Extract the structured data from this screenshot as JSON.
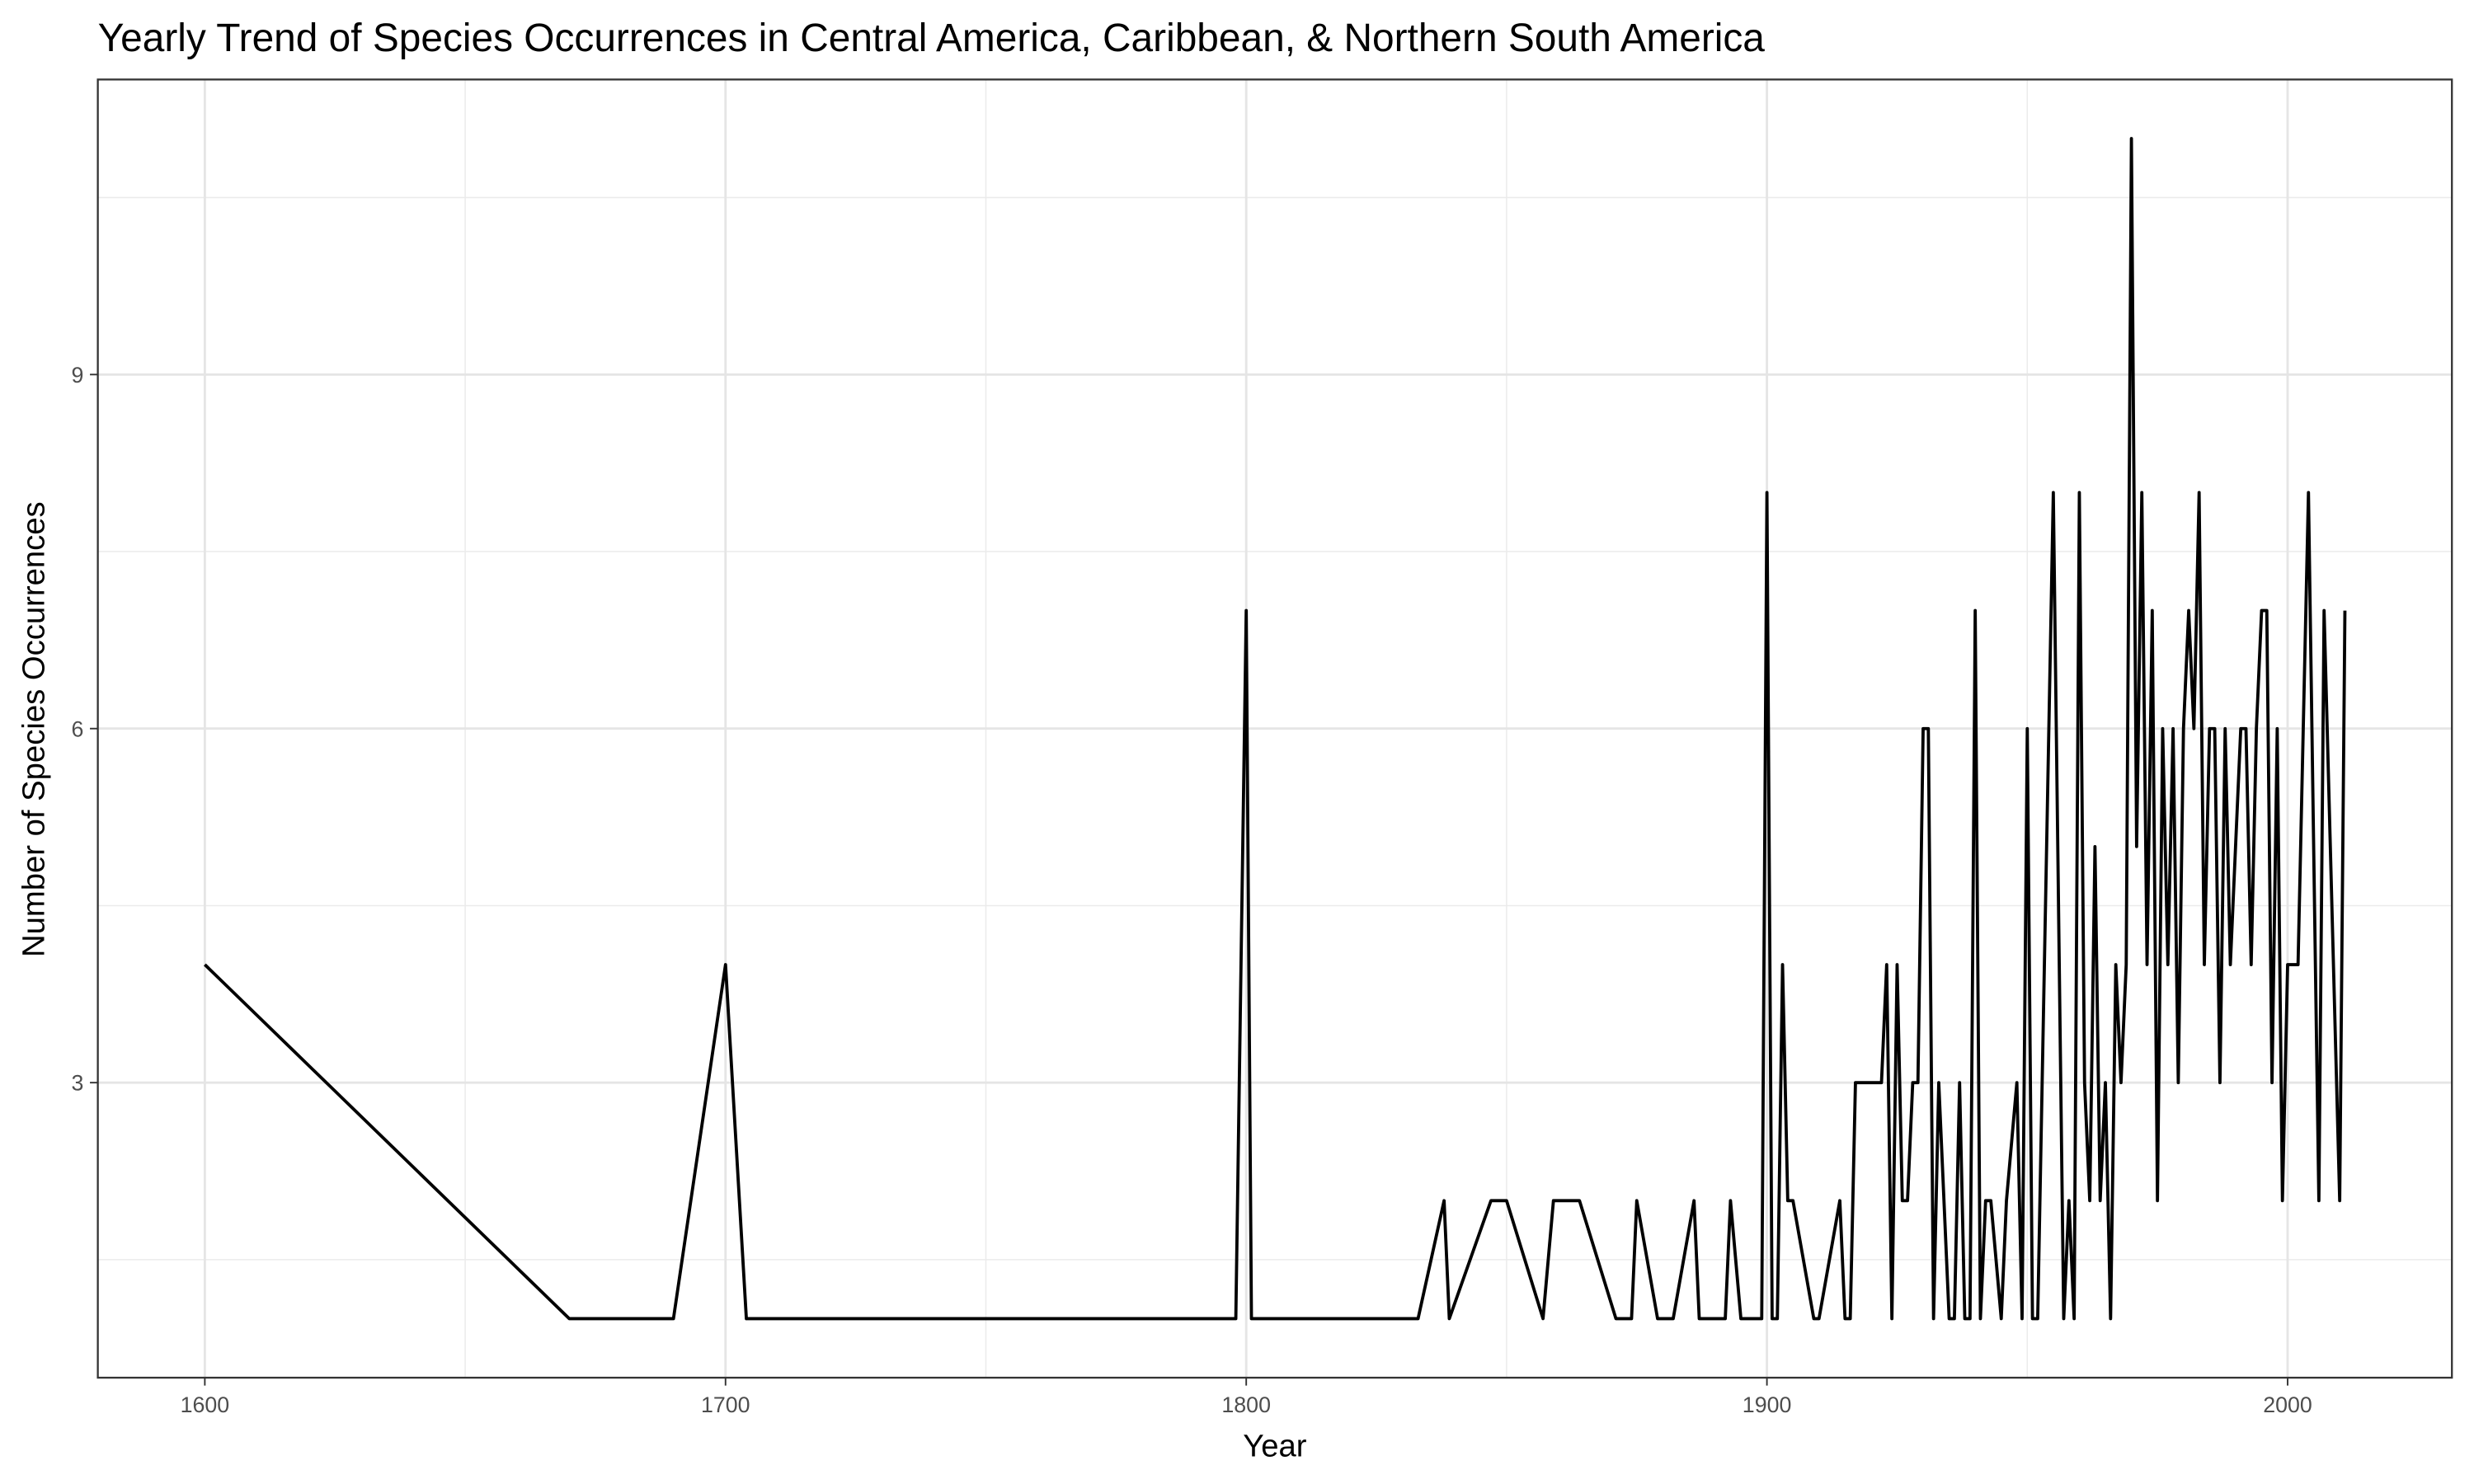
{
  "chart_data": {
    "type": "line",
    "title": "Yearly Trend of Species Occurrences in Central America, Caribbean, & Northern South America",
    "x_label": "Year",
    "y_label": "Number of Species Occurrences",
    "x": [
      1600,
      1670,
      1690,
      1700,
      1704,
      1798,
      1800,
      1801,
      1833,
      1838,
      1839,
      1847,
      1850,
      1857,
      1859,
      1864,
      1871,
      1874,
      1875,
      1879,
      1882,
      1886,
      1887,
      1892,
      1893,
      1895,
      1899,
      1900,
      1901,
      1902,
      1903,
      1904,
      1905,
      1909,
      1910,
      1914,
      1915,
      1916,
      1917,
      1922,
      1923,
      1924,
      1925,
      1926,
      1927,
      1928,
      1929,
      1930,
      1931,
      1932,
      1933,
      1935,
      1936,
      1937,
      1938,
      1939,
      1940,
      1941,
      1942,
      1943,
      1945,
      1946,
      1948,
      1949,
      1950,
      1951,
      1952,
      1955,
      1957,
      1958,
      1959,
      1960,
      1961,
      1962,
      1963,
      1964,
      1965,
      1966,
      1967,
      1968,
      1969,
      1970,
      1971,
      1972,
      1973,
      1974,
      1975,
      1976,
      1977,
      1978,
      1979,
      1980,
      1981,
      1982,
      1983,
      1984,
      1985,
      1986,
      1987,
      1988,
      1989,
      1991,
      1992,
      1993,
      1994,
      1995,
      1996,
      1997,
      1998,
      1999,
      2000,
      2001,
      2002,
      2004,
      2006,
      2007,
      2010,
      2011
    ],
    "series": [
      {
        "color": "#000000",
        "values": [
          4,
          1,
          1,
          4,
          1,
          1,
          7,
          1,
          1,
          2,
          1,
          2,
          2,
          1,
          2,
          2,
          1,
          1,
          2,
          1,
          1,
          2,
          1,
          1,
          2,
          1,
          1,
          8,
          1,
          1,
          4,
          2,
          2,
          1,
          1,
          2,
          1,
          1,
          3,
          3,
          4,
          1,
          4,
          2,
          2,
          3,
          3,
          6,
          6,
          1,
          3,
          1,
          1,
          3,
          1,
          1,
          7,
          1,
          2,
          2,
          1,
          2,
          3,
          1,
          6,
          1,
          1,
          8,
          1,
          2,
          1,
          8,
          3,
          2,
          5,
          2,
          3,
          1,
          4,
          3,
          4,
          11,
          5,
          8,
          4,
          7,
          2,
          6,
          4,
          6,
          3,
          6,
          7,
          6,
          8,
          4,
          6,
          6,
          3,
          6,
          4,
          6,
          6,
          4,
          6,
          7,
          7,
          3,
          6,
          2,
          4,
          4,
          4,
          8,
          2,
          7,
          2,
          7
        ]
      }
    ],
    "xlim": [
      1579.45,
      2031.55
    ],
    "xticks": [
      1600,
      1700,
      1800,
      1900,
      2000
    ],
    "ylim": [
      0.5,
      11.5
    ],
    "yticks": [
      3,
      6,
      9
    ],
    "grid": true
  }
}
